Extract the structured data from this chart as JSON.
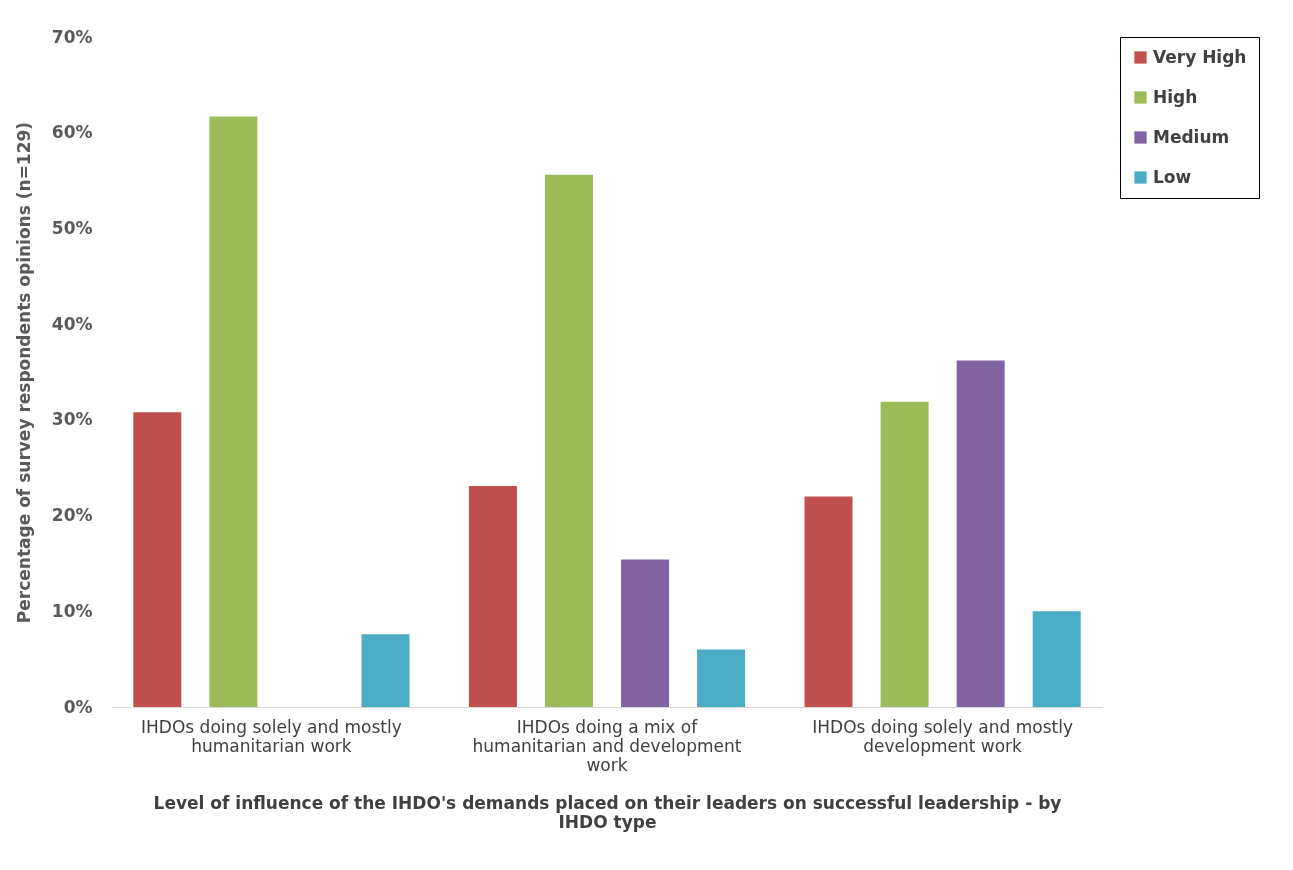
{
  "chart_data": {
    "type": "bar",
    "categories": [
      "IHDOs doing solely and mostly humanitarian work",
      "IHDOs doing a mix of humanitarian and development work",
      "IHDOs doing solely and mostly development work"
    ],
    "series": [
      {
        "name": "Very High",
        "color": "#c0504d",
        "values": [
          30.8,
          23.1,
          22.0
        ]
      },
      {
        "name": "High",
        "color": "#9bbb59",
        "values": [
          61.7,
          55.6,
          31.9
        ]
      },
      {
        "name": "Medium",
        "color": "#8064a2",
        "values": [
          0,
          15.4,
          36.2
        ]
      },
      {
        "name": "Low",
        "color": "#4bacc6",
        "values": [
          7.6,
          6.0,
          10.0
        ]
      }
    ],
    "xlabel": "Level of influence of the IHDO's demands placed on their leaders on successful leadership - by IHDO type",
    "ylabel": "Percentage of survey respondents opinions (n=129)",
    "ylim": [
      0,
      70
    ],
    "yticks": [
      {
        "value": 0,
        "label": "0%"
      },
      {
        "value": 10,
        "label": "10%"
      },
      {
        "value": 20,
        "label": "20%"
      },
      {
        "value": 30,
        "label": "30%"
      },
      {
        "value": 40,
        "label": "40%"
      },
      {
        "value": 50,
        "label": "50%"
      },
      {
        "value": 60,
        "label": "60%"
      },
      {
        "value": 70,
        "label": "70%"
      }
    ],
    "grid": false,
    "legend": "right"
  }
}
